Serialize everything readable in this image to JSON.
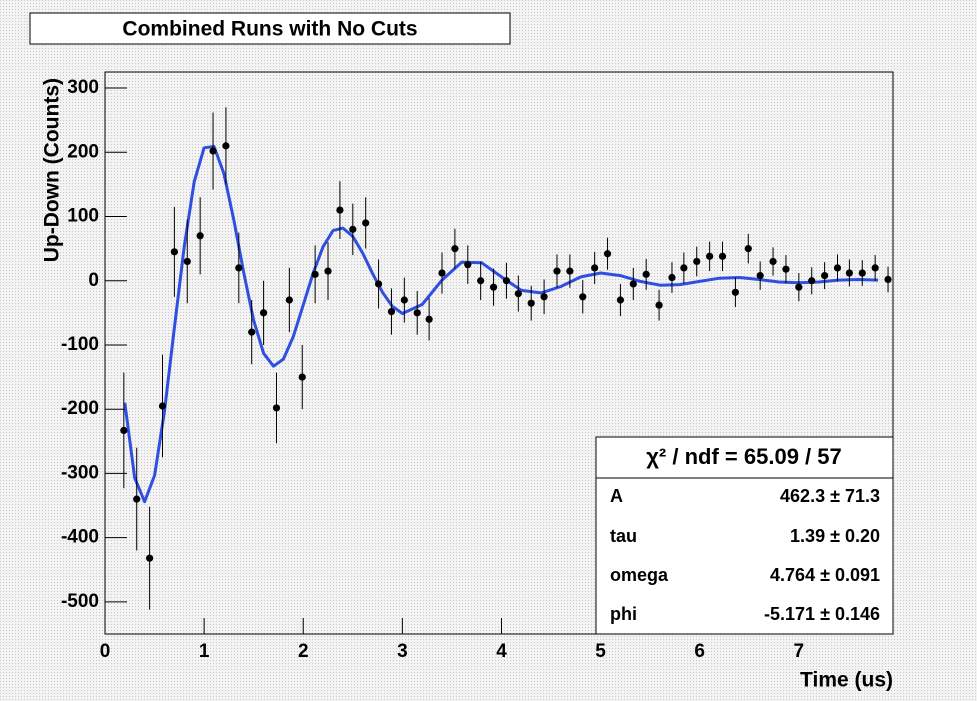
{
  "chart_data": {
    "type": "scatter",
    "title": "Combined Runs with No Cuts",
    "xlabel": "Time (us)",
    "ylabel": "Up-Down (Counts)",
    "color": "#000000",
    "x": [
      0.19,
      0.32,
      0.45,
      0.58,
      0.7,
      0.83,
      0.96,
      1.09,
      1.22,
      1.35,
      1.48,
      1.6,
      1.73,
      1.86,
      1.99,
      2.12,
      2.25,
      2.37,
      2.5,
      2.63,
      2.76,
      2.89,
      3.02,
      3.15,
      3.27,
      3.4,
      3.53,
      3.66,
      3.79,
      3.92,
      4.05,
      4.17,
      4.3,
      4.43,
      4.56,
      4.69,
      4.82,
      4.94,
      5.07,
      5.2,
      5.33,
      5.46,
      5.59,
      5.72,
      5.84,
      5.97,
      6.1,
      6.23,
      6.36,
      6.49,
      6.61,
      6.74,
      6.87,
      7.0,
      7.13,
      7.26,
      7.39,
      7.51,
      7.64,
      7.77,
      7.9
    ],
    "values": [
      -233,
      -340,
      -432,
      -195,
      45,
      30,
      70,
      202,
      210,
      20,
      -80,
      -50,
      -198,
      -30,
      -150,
      10,
      15,
      110,
      80,
      90,
      -5,
      -48,
      -30,
      -50,
      -60,
      12,
      50,
      25,
      0,
      -10,
      0,
      -20,
      -35,
      -25,
      15,
      15,
      -25,
      20,
      42,
      -30,
      -5,
      10,
      -38,
      5,
      20,
      30,
      38,
      38,
      -18,
      50,
      8,
      30,
      18,
      -10,
      0,
      8,
      20,
      12,
      12,
      20,
      2
    ],
    "errors": [
      90,
      80,
      80,
      80,
      70,
      65,
      60,
      60,
      60,
      55,
      50,
      50,
      55,
      50,
      50,
      45,
      45,
      45,
      40,
      40,
      38,
      36,
      35,
      34,
      33,
      32,
      31,
      30,
      30,
      29,
      28,
      28,
      27,
      27,
      26,
      26,
      26,
      25,
      25,
      25,
      25,
      24,
      24,
      24,
      24,
      23,
      23,
      23,
      23,
      23,
      22,
      22,
      22,
      22,
      21,
      21,
      21,
      21,
      20,
      20,
      20
    ],
    "fit": {
      "color": "#2f4fe0",
      "x": [
        0.2,
        0.3,
        0.4,
        0.5,
        0.6,
        0.7,
        0.8,
        0.9,
        1.0,
        1.1,
        1.2,
        1.3,
        1.4,
        1.5,
        1.6,
        1.7,
        1.8,
        1.9,
        2.0,
        2.1,
        2.2,
        2.3,
        2.4,
        2.5,
        2.6,
        2.7,
        2.8,
        2.9,
        3.0,
        3.2,
        3.4,
        3.6,
        3.8,
        4.0,
        4.2,
        4.4,
        4.6,
        4.8,
        5.0,
        5.2,
        5.4,
        5.6,
        5.8,
        6.0,
        6.2,
        6.4,
        6.6,
        6.8,
        7.0,
        7.2,
        7.4,
        7.6,
        7.8
      ],
      "values": [
        -190,
        -307,
        -344,
        -303,
        -203,
        -73,
        54,
        154,
        207,
        209,
        167,
        94,
        12,
        -62,
        -113,
        -133,
        -122,
        -87,
        -38,
        12,
        53,
        78,
        82,
        69,
        43,
        11,
        -18,
        -40,
        -51,
        -37,
        1,
        29,
        28,
        6,
        -15,
        -19,
        -9,
        6,
        12,
        8,
        -1,
        -7,
        -6,
        -1,
        4,
        5,
        2,
        -2,
        -3,
        -2,
        1,
        2,
        1
      ]
    },
    "xlim": [
      0,
      7.95
    ],
    "ylim": [
      -550,
      325
    ],
    "xticks": [
      0,
      1,
      2,
      3,
      4,
      5,
      6,
      7
    ],
    "yticks": [
      -500,
      -400,
      -300,
      -200,
      -100,
      0,
      100,
      200,
      300
    ],
    "stats": {
      "header": "χ² / ndf = 65.09 / 57",
      "rows": [
        {
          "name": "A",
          "value": "462.3 ± 71.3"
        },
        {
          "name": "tau",
          "value": "1.39 ± 0.20"
        },
        {
          "name": "omega",
          "value": "4.764 ± 0.091"
        },
        {
          "name": "phi",
          "value": "-5.171 ± 0.146"
        }
      ]
    }
  }
}
